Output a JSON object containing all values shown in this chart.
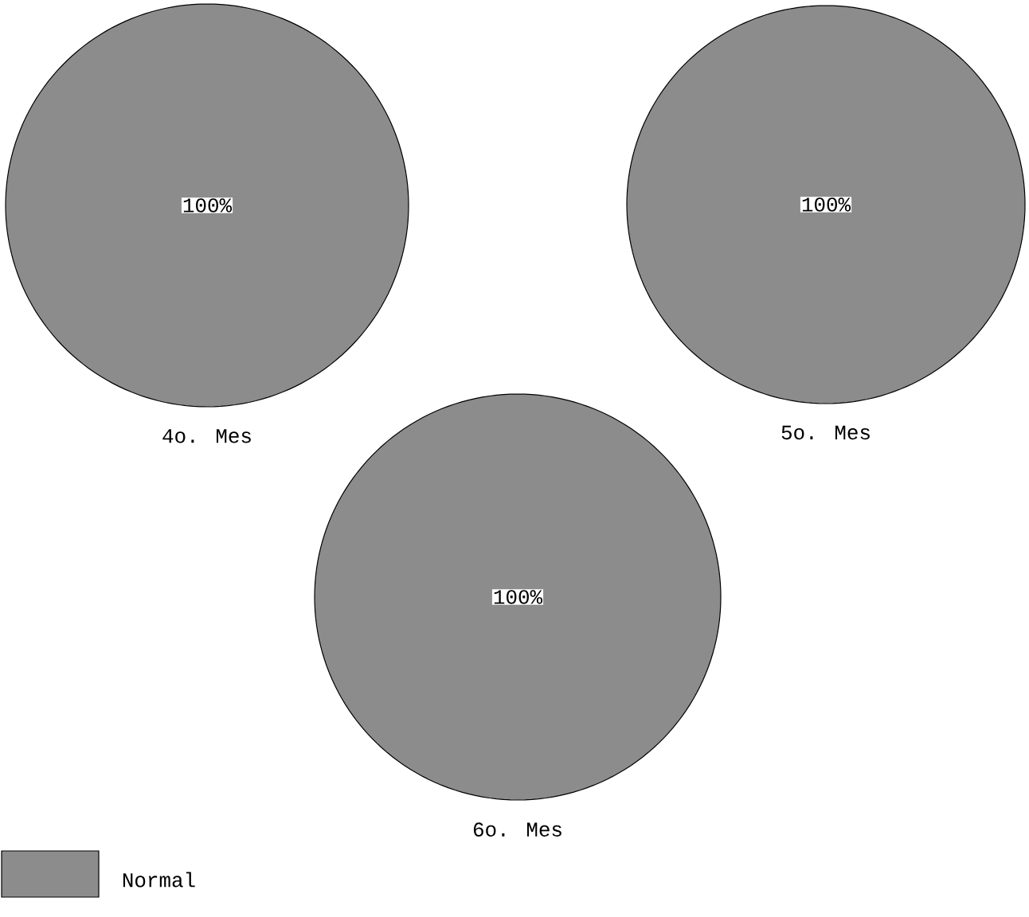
{
  "chart_data": [
    {
      "type": "pie",
      "title": "4o. Mes",
      "categories": [
        null
      ],
      "values": [
        100
      ],
      "colors": [
        "#8c8c8c"
      ],
      "value_labels": [
        "100%"
      ]
    },
    {
      "type": "pie",
      "title": "5o. Mes",
      "categories": [
        null
      ],
      "values": [
        100
      ],
      "colors": [
        "#8c8c8c"
      ],
      "value_labels": [
        "100%"
      ]
    },
    {
      "type": "pie",
      "title": "6o. Mes",
      "categories": [
        "Normal"
      ],
      "values": [
        100
      ],
      "colors": [
        "#8c8c8c"
      ],
      "value_labels": [
        "100%"
      ],
      "legend": "bottom left"
    }
  ]
}
